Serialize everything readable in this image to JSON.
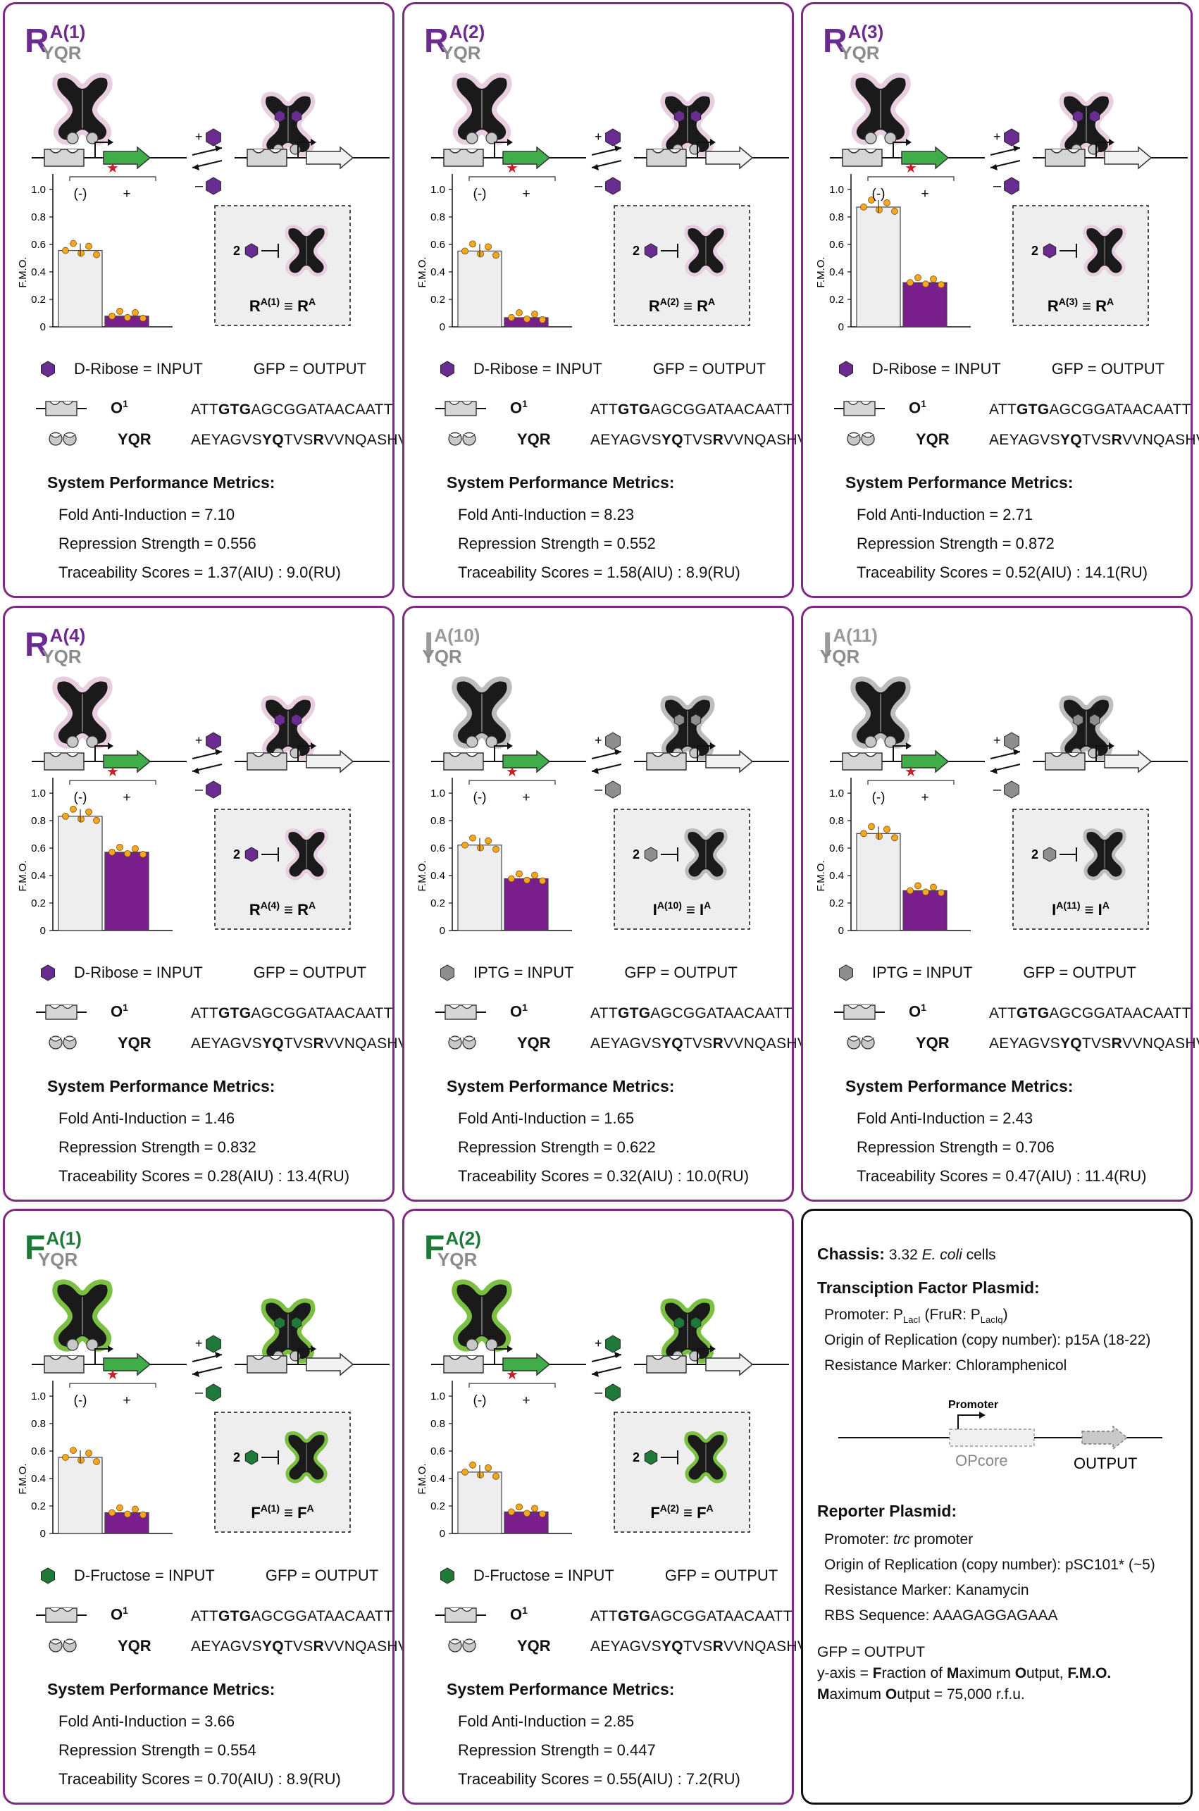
{
  "panels": [
    {
      "id": "RA1",
      "title_main": "R",
      "title_sup": "A(1)",
      "title_sub": "YQR",
      "title_color": "#6b2c91",
      "ligand_color": "#6b2c91",
      "halo": "#e8cfe0",
      "bar_color": "#7a1e8e",
      "box_label_main": "R",
      "box_label_sup": "A(1)",
      "box_label_rhs": "R",
      "box_label_rhs_sup": "A",
      "box_stoich": "2",
      "chart_data": {
        "type": "bar",
        "categories": [
          "(-)",
          "+"
        ],
        "values": [
          0.556,
          0.078
        ],
        "ylim": [
          0,
          1.0
        ],
        "yticks": [
          "0",
          "0.2",
          "0.4",
          "0.6",
          "0.8",
          "1.0"
        ],
        "ylabel": "F.M.O.",
        "significance": "★"
      },
      "input_label": "D-Ribose = INPUT",
      "output_label": "GFP = OUTPUT",
      "operator_label": "O",
      "operator_sup": "1",
      "operator_seq_pre": "ATT",
      "operator_seq_bold": "GTG",
      "operator_seq_post": "AGCGGATAACAATT",
      "ybind_label": "YQR",
      "ybind_seq_1": "AEYAGVS",
      "ybind_seq_2": "YQ",
      "ybind_seq_3": "TVS",
      "ybind_seq_4": "R",
      "ybind_seq_5": "VVNQASHV",
      "metrics_title": "System Performance Metrics:",
      "fold": "Fold Anti-Induction = 7.10",
      "repression": "Repression Strength = 0.556",
      "trace": "Traceability Scores = 1.37(AIU) : 9.0(RU)"
    },
    {
      "id": "RA2",
      "title_main": "R",
      "title_sup": "A(2)",
      "title_sub": "YQR",
      "title_color": "#6b2c91",
      "ligand_color": "#6b2c91",
      "halo": "#e8cfe0",
      "bar_color": "#7a1e8e",
      "box_label_main": "R",
      "box_label_sup": "A(2)",
      "box_label_rhs": "R",
      "box_label_rhs_sup": "A",
      "box_stoich": "2",
      "chart_data": {
        "type": "bar",
        "categories": [
          "(-)",
          "+"
        ],
        "values": [
          0.552,
          0.067
        ],
        "ylim": [
          0,
          1.0
        ],
        "yticks": [
          "0",
          "0.2",
          "0.4",
          "0.6",
          "0.8",
          "1.0"
        ],
        "ylabel": "F.M.O.",
        "significance": "★"
      },
      "input_label": "D-Ribose = INPUT",
      "output_label": "GFP = OUTPUT",
      "operator_label": "O",
      "operator_sup": "1",
      "operator_seq_pre": "ATT",
      "operator_seq_bold": "GTG",
      "operator_seq_post": "AGCGGATAACAATT",
      "ybind_label": "YQR",
      "ybind_seq_1": "AEYAGVS",
      "ybind_seq_2": "YQ",
      "ybind_seq_3": "TVS",
      "ybind_seq_4": "R",
      "ybind_seq_5": "VVNQASHV",
      "metrics_title": "System Performance Metrics:",
      "fold": "Fold Anti-Induction = 8.23",
      "repression": "Repression Strength = 0.552",
      "trace": "Traceability Scores = 1.58(AIU) : 8.9(RU)"
    },
    {
      "id": "RA3",
      "title_main": "R",
      "title_sup": "A(3)",
      "title_sub": "YQR",
      "title_color": "#6b2c91",
      "ligand_color": "#6b2c91",
      "halo": "#e8cfe0",
      "bar_color": "#7a1e8e",
      "box_label_main": "R",
      "box_label_sup": "A(3)",
      "box_label_rhs": "R",
      "box_label_rhs_sup": "A",
      "box_stoich": "2",
      "chart_data": {
        "type": "bar",
        "categories": [
          "(-)",
          "+"
        ],
        "values": [
          0.872,
          0.322
        ],
        "ylim": [
          0,
          1.0
        ],
        "yticks": [
          "0",
          "0.2",
          "0.4",
          "0.6",
          "0.8",
          "1.0"
        ],
        "ylabel": "F.M.O.",
        "significance": "★"
      },
      "input_label": "D-Ribose = INPUT",
      "output_label": "GFP = OUTPUT",
      "operator_label": "O",
      "operator_sup": "1",
      "operator_seq_pre": "ATT",
      "operator_seq_bold": "GTG",
      "operator_seq_post": "AGCGGATAACAATT",
      "ybind_label": "YQR",
      "ybind_seq_1": "AEYAGVS",
      "ybind_seq_2": "YQ",
      "ybind_seq_3": "TVS",
      "ybind_seq_4": "R",
      "ybind_seq_5": "VVNQASHV",
      "metrics_title": "System Performance Metrics:",
      "fold": "Fold Anti-Induction = 2.71",
      "repression": "Repression Strength = 0.872",
      "trace": "Traceability Scores = 0.52(AIU) : 14.1(RU)"
    },
    {
      "id": "RA4",
      "title_main": "R",
      "title_sup": "A(4)",
      "title_sub": "YQR",
      "title_color": "#6b2c91",
      "ligand_color": "#6b2c91",
      "halo": "#e8cfe0",
      "bar_color": "#7a1e8e",
      "box_label_main": "R",
      "box_label_sup": "A(4)",
      "box_label_rhs": "R",
      "box_label_rhs_sup": "A",
      "box_stoich": "2",
      "chart_data": {
        "type": "bar",
        "categories": [
          "(-)",
          "+"
        ],
        "values": [
          0.832,
          0.57
        ],
        "ylim": [
          0,
          1.0
        ],
        "yticks": [
          "0",
          "0.2",
          "0.4",
          "0.6",
          "0.8",
          "1.0"
        ],
        "ylabel": "F.M.O.",
        "significance": "★"
      },
      "input_label": "D-Ribose = INPUT",
      "output_label": "GFP = OUTPUT",
      "operator_label": "O",
      "operator_sup": "1",
      "operator_seq_pre": "ATT",
      "operator_seq_bold": "GTG",
      "operator_seq_post": "AGCGGATAACAATT",
      "ybind_label": "YQR",
      "ybind_seq_1": "AEYAGVS",
      "ybind_seq_2": "YQ",
      "ybind_seq_3": "TVS",
      "ybind_seq_4": "R",
      "ybind_seq_5": "VVNQASHV",
      "metrics_title": "System Performance Metrics:",
      "fold": "Fold Anti-Induction = 1.46",
      "repression": "Repression Strength = 0.832",
      "trace": "Traceability Scores = 0.28(AIU) : 13.4(RU)"
    },
    {
      "id": "IA10",
      "title_main": "I",
      "title_sup": "A(10)",
      "title_sub": "YQR",
      "title_color": "#9a9a9a",
      "ligand_color": "#8e8e8e",
      "halo": "#bdbdbd",
      "bar_color": "#7a1e8e",
      "box_label_main": "I",
      "box_label_sup": "A(10)",
      "box_label_rhs": "I",
      "box_label_rhs_sup": "A",
      "box_stoich": "2",
      "chart_data": {
        "type": "bar",
        "categories": [
          "(-)",
          "+"
        ],
        "values": [
          0.622,
          0.377
        ],
        "ylim": [
          0,
          1.0
        ],
        "yticks": [
          "0",
          "0.2",
          "0.4",
          "0.6",
          "0.8",
          "1.0"
        ],
        "ylabel": "F.M.O.",
        "significance": "★"
      },
      "input_label": "IPTG = INPUT",
      "output_label": "GFP = OUTPUT",
      "operator_label": "O",
      "operator_sup": "1",
      "operator_seq_pre": "ATT",
      "operator_seq_bold": "GTG",
      "operator_seq_post": "AGCGGATAACAATT",
      "ybind_label": "YQR",
      "ybind_seq_1": "AEYAGVS",
      "ybind_seq_2": "YQ",
      "ybind_seq_3": "TVS",
      "ybind_seq_4": "R",
      "ybind_seq_5": "VVNQASHV",
      "metrics_title": "System Performance Metrics:",
      "fold": "Fold Anti-Induction = 1.65",
      "repression": "Repression Strength = 0.622",
      "trace": "Traceability Scores = 0.32(AIU) : 10.0(RU)"
    },
    {
      "id": "IA11",
      "title_main": "I",
      "title_sup": "A(11)",
      "title_sub": "YQR",
      "title_color": "#9a9a9a",
      "ligand_color": "#8e8e8e",
      "halo": "#bdbdbd",
      "bar_color": "#7a1e8e",
      "box_label_main": "I",
      "box_label_sup": "A(11)",
      "box_label_rhs": "I",
      "box_label_rhs_sup": "A",
      "box_stoich": "2",
      "chart_data": {
        "type": "bar",
        "categories": [
          "(-)",
          "+"
        ],
        "values": [
          0.706,
          0.29
        ],
        "ylim": [
          0,
          1.0
        ],
        "yticks": [
          "0",
          "0.2",
          "0.4",
          "0.6",
          "0.8",
          "1.0"
        ],
        "ylabel": "F.M.O.",
        "significance": "★"
      },
      "input_label": "IPTG = INPUT",
      "output_label": "GFP = OUTPUT",
      "operator_label": "O",
      "operator_sup": "1",
      "operator_seq_pre": "ATT",
      "operator_seq_bold": "GTG",
      "operator_seq_post": "AGCGGATAACAATT",
      "ybind_label": "YQR",
      "ybind_seq_1": "AEYAGVS",
      "ybind_seq_2": "YQ",
      "ybind_seq_3": "TVS",
      "ybind_seq_4": "R",
      "ybind_seq_5": "VVNQASHV",
      "metrics_title": "System Performance Metrics:",
      "fold": "Fold Anti-Induction = 2.43",
      "repression": "Repression Strength = 0.706",
      "trace": "Traceability Scores = 0.47(AIU) : 11.4(RU)"
    },
    {
      "id": "FA1",
      "title_main": "F",
      "title_sup": "A(1)",
      "title_sub": "YQR",
      "title_color": "#1f7a3a",
      "ligand_color": "#1f7a3a",
      "halo": "#7bc043",
      "bar_color": "#7a1e8e",
      "box_label_main": "F",
      "box_label_sup": "A(1)",
      "box_label_rhs": "F",
      "box_label_rhs_sup": "A",
      "box_stoich": "2",
      "chart_data": {
        "type": "bar",
        "categories": [
          "(-)",
          "+"
        ],
        "values": [
          0.554,
          0.151
        ],
        "ylim": [
          0,
          1.0
        ],
        "yticks": [
          "0",
          "0.2",
          "0.4",
          "0.6",
          "0.8",
          "1.0"
        ],
        "ylabel": "F.M.O.",
        "significance": "★"
      },
      "input_label": "D-Fructose = INPUT",
      "output_label": "GFP = OUTPUT",
      "operator_label": "O",
      "operator_sup": "1",
      "operator_seq_pre": "ATT",
      "operator_seq_bold": "GTG",
      "operator_seq_post": "AGCGGATAACAATT",
      "ybind_label": "YQR",
      "ybind_seq_1": "AEYAGVS",
      "ybind_seq_2": "YQ",
      "ybind_seq_3": "TVS",
      "ybind_seq_4": "R",
      "ybind_seq_5": "VVNQASHV",
      "metrics_title": "System Performance Metrics:",
      "fold": "Fold Anti-Induction = 3.66",
      "repression": "Repression Strength = 0.554",
      "trace": "Traceability Scores = 0.70(AIU) : 8.9(RU)"
    },
    {
      "id": "FA2",
      "title_main": "F",
      "title_sup": "A(2)",
      "title_sub": "YQR",
      "title_color": "#1f7a3a",
      "ligand_color": "#1f7a3a",
      "halo": "#7bc043",
      "bar_color": "#7a1e8e",
      "box_label_main": "F",
      "box_label_sup": "A(2)",
      "box_label_rhs": "F",
      "box_label_rhs_sup": "A",
      "box_stoich": "2",
      "chart_data": {
        "type": "bar",
        "categories": [
          "(-)",
          "+"
        ],
        "values": [
          0.447,
          0.157
        ],
        "ylim": [
          0,
          1.0
        ],
        "yticks": [
          "0",
          "0.2",
          "0.4",
          "0.6",
          "0.8",
          "1.0"
        ],
        "ylabel": "F.M.O.",
        "significance": "★"
      },
      "input_label": "D-Fructose = INPUT",
      "output_label": "GFP = OUTPUT",
      "operator_label": "O",
      "operator_sup": "1",
      "operator_seq_pre": "ATT",
      "operator_seq_bold": "GTG",
      "operator_seq_post": "AGCGGATAACAATT",
      "ybind_label": "YQR",
      "ybind_seq_1": "AEYAGVS",
      "ybind_seq_2": "YQ",
      "ybind_seq_3": "TVS",
      "ybind_seq_4": "R",
      "ybind_seq_5": "VVNQASHV",
      "metrics_title": "System Performance Metrics:",
      "fold": "Fold Anti-Induction = 2.85",
      "repression": "Repression Strength = 0.447",
      "trace": "Traceability Scores = 0.55(AIU) : 7.2(RU)"
    }
  ],
  "info": {
    "chassis_label": "Chassis:",
    "chassis_value": "3.32 ",
    "chassis_species": "E. coli",
    "chassis_tail": " cells",
    "tf_title": "Transciption Factor Plasmid:",
    "tf_promoter_pre": "Promoter: P",
    "tf_promoter_sub": "LacI",
    "tf_promoter_mid": " (FruR: P",
    "tf_promoter_sub2": "LacIq",
    "tf_promoter_post": ")",
    "tf_origin": "Origin of Replication (copy number): p15A (18-22)",
    "tf_resist": "Resistance Marker: Chloramphenicol",
    "diagram_promoter": "Promoter",
    "diagram_opcore": "OPcore",
    "diagram_output": "OUTPUT",
    "rep_title": "Reporter Plasmid:",
    "rep_promoter_pre": "Promoter: ",
    "rep_promoter_it": "trc",
    "rep_promoter_post": " promoter",
    "rep_origin": "Origin of Replication (copy number): pSC101* (~5)",
    "rep_resist": "Resistance Marker: Kanamycin",
    "rep_rbs": "RBS Sequence: AAAGAGGAGAAA",
    "gfp_line": "GFP = OUTPUT",
    "yaxis_pre": "y-axis  = ",
    "yaxis_F": "F",
    "yaxis_1": "raction of ",
    "yaxis_M": "M",
    "yaxis_2": "aximum ",
    "yaxis_O": "O",
    "yaxis_3": "utput, ",
    "yaxis_bold": "F.M.O.",
    "max_M": "M",
    "max_1": "aximum ",
    "max_O": "O",
    "max_2": "utput = 75,000 r.f.u."
  },
  "colors": {
    "panel_border": "#7d2a83",
    "gfp_green": "#3fae49",
    "bar_minus": "#eeeeee",
    "dots": "#f5a623",
    "star": "#c8202a"
  }
}
